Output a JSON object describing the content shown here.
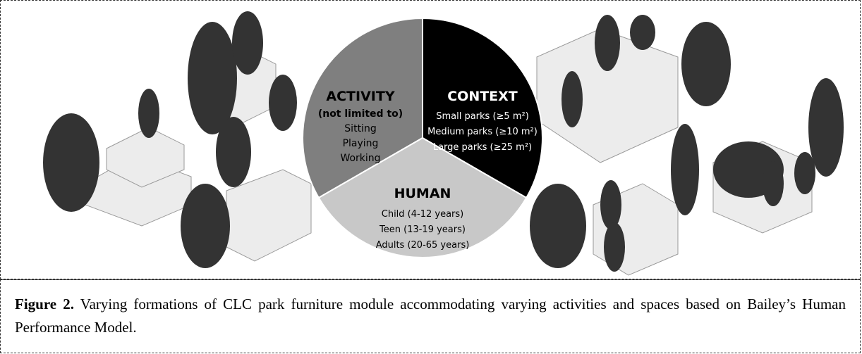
{
  "diagram": {
    "sectors": [
      {
        "title": "ACTIVITY",
        "subtitle": "(not limited to)",
        "items": [
          "Sitting",
          "Playing",
          "Working"
        ]
      },
      {
        "title": "CONTEXT",
        "items": [
          "Small parks (≥5 m²)",
          "Medium parks (≥10 m²)",
          "Large parks (≥25 m²)"
        ]
      },
      {
        "title": "HUMAN",
        "items": [
          "Child (4-12 years)",
          "Teen (13-19 years)",
          "Adults (20-65 years)"
        ]
      }
    ]
  },
  "caption": {
    "label": "Figure 2.",
    "text": "Varying formations of CLC park furniture module accommodating varying activities and spaces based on Bailey’s Human Performance Model."
  }
}
